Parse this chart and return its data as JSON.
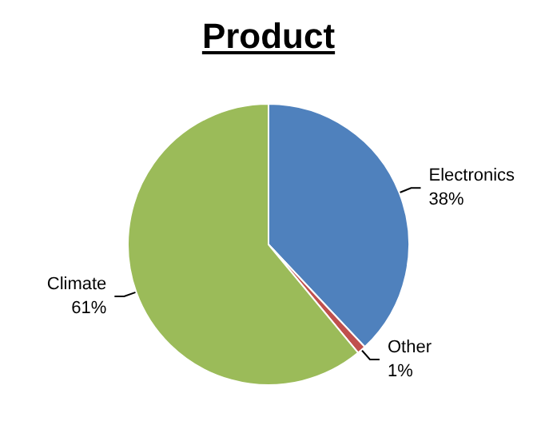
{
  "chart_data": {
    "type": "pie",
    "title": "Product",
    "categories": [
      "Electronics",
      "Other",
      "Climate"
    ],
    "values": [
      38,
      1,
      61
    ],
    "value_labels": [
      "38%",
      "1%",
      "61%"
    ],
    "colors": [
      "#4f81bd",
      "#c0504d",
      "#9bbb59"
    ],
    "legend": false
  }
}
